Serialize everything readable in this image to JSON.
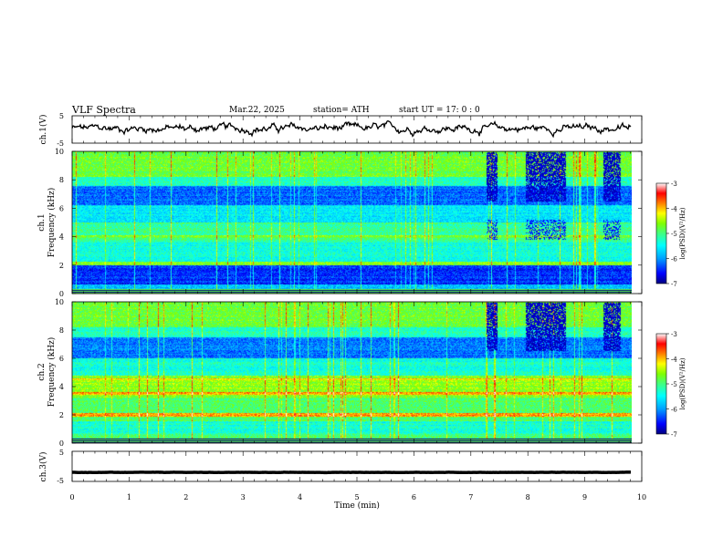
{
  "header": {
    "title": "VLF  Spectra",
    "date": "Mar.22, 2025",
    "station": "station= ATH",
    "start_ut": "start  UT  =    17: 0   : 0"
  },
  "chart_data": [
    {
      "type": "line",
      "name": "ch1-voltage",
      "ylabel": "ch.1(V)",
      "ylim": [
        -5,
        5
      ],
      "yticks": [
        "5",
        "-5"
      ],
      "trace_level": 0.4,
      "color": "#000000"
    },
    {
      "type": "heatmap",
      "name": "ch1-spectrogram",
      "ylabel_channel": "ch.1",
      "ylabel": "Frequency  (kHz)",
      "ylim": [
        0,
        10
      ],
      "yticks": [
        "0",
        "2",
        "4",
        "6",
        "8",
        "10"
      ],
      "colorbar": {
        "label": "log(PSD)(V²/Hz)",
        "range": [
          -7,
          -3
        ],
        "ticks": [
          "-3",
          "-4",
          "-5",
          "-6",
          "-7"
        ],
        "colors": [
          "#000080",
          "#0000ff",
          "#00a0ff",
          "#00ffff",
          "#40ff80",
          "#80ff00",
          "#ffff00",
          "#ff8000",
          "#ff0000",
          "#ffffff"
        ]
      }
    },
    {
      "type": "heatmap",
      "name": "ch2-spectrogram",
      "ylabel_channel": "ch.2",
      "ylabel": "Frequency  (kHz)",
      "ylim": [
        0,
        10
      ],
      "yticks": [
        "0",
        "2",
        "4",
        "6",
        "8",
        "10"
      ],
      "colorbar": {
        "label": "log(PSD)(V²/Hz)",
        "range": [
          -7,
          -3
        ],
        "ticks": [
          "-3",
          "-4",
          "-5",
          "-6",
          "-7"
        ],
        "colors": [
          "#000080",
          "#0000ff",
          "#00a0ff",
          "#00ffff",
          "#40ff80",
          "#80ff00",
          "#ffff00",
          "#ff8000",
          "#ff0000",
          "#ffffff"
        ]
      }
    },
    {
      "type": "line",
      "name": "ch3-voltage",
      "ylabel": "ch.3(V)",
      "ylim": [
        -5,
        5
      ],
      "yticks": [
        "5",
        "-5"
      ],
      "trace_level": -2,
      "color": "#000000"
    }
  ],
  "xaxis": {
    "label": "Time  (min)",
    "xlim": [
      0,
      10
    ],
    "ticks": [
      "0",
      "1",
      "2",
      "3",
      "4",
      "5",
      "6",
      "7",
      "8",
      "9",
      "10"
    ],
    "data_end": 9.82
  }
}
